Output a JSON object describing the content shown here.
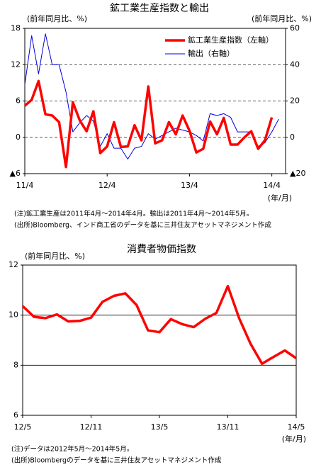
{
  "chart_data": [
    {
      "type": "line",
      "title": "鉱工業生産指数と輸出",
      "ylabel": "(前年同月比、%)",
      "y2label": "(前年同月比、%)",
      "xlabel": "(年/月)",
      "categories": [
        "11/4",
        null,
        null,
        null,
        null,
        null,
        null,
        null,
        null,
        null,
        null,
        null,
        "12/4",
        null,
        null,
        null,
        null,
        null,
        null,
        null,
        null,
        null,
        null,
        null,
        "13/4",
        null,
        null,
        null,
        null,
        null,
        null,
        null,
        null,
        null,
        null,
        null,
        "14/4",
        null
      ],
      "series": [
        {
          "name": "鉱工業生産指数（左軸）",
          "color": "#ff0000",
          "axis": "y",
          "values": [
            5.2,
            6.2,
            9.3,
            3.8,
            3.6,
            2.5,
            -4.9,
            5.8,
            2.8,
            1.0,
            4.3,
            -2.6,
            -1.5,
            2.5,
            -1.6,
            -1.5,
            2.0,
            -0.5,
            8.4,
            -1.0,
            -0.5,
            2.5,
            0.5,
            3.6,
            1.1,
            -2.5,
            -1.9,
            2.6,
            0.5,
            3.2,
            -1.2,
            -1.2,
            0.0,
            1.0,
            -1.9,
            -0.5,
            3.3,
            null
          ]
        },
        {
          "name": "輸出（右軸）",
          "color": "#0000dd",
          "axis": "y2",
          "values": [
            29,
            56,
            35,
            57,
            40,
            40,
            25,
            3,
            8,
            12,
            9,
            -5,
            2,
            -6,
            -6,
            -12,
            -6,
            -5,
            2,
            -1,
            1,
            3,
            5,
            4,
            3,
            1,
            -2,
            13,
            12,
            13,
            11,
            3,
            3,
            3,
            -5,
            -3,
            3,
            10
          ]
        }
      ],
      "ylim": [
        -6,
        18
      ],
      "yticks": [
        {
          "value": -6,
          "label": "▲6"
        },
        0,
        6,
        12,
        18
      ],
      "y2lim": [
        -20,
        60
      ],
      "y2ticks": [
        {
          "value": -20,
          "label": "▲20"
        },
        0,
        20,
        40,
        60
      ],
      "grid": true,
      "notes": [
        "(注)鉱工業生産は2011年4月～2014年4月。輸出は2011年4月～2014年5月。",
        "(出所)Bloomberg、インド商工省のデータを基に三井住友アセットマネジメント作成"
      ]
    },
    {
      "type": "line",
      "title": "消費者物価指数",
      "ylabel": "(前年同月比、%)",
      "xlabel": "(年/月)",
      "categories": [
        "12/5",
        null,
        null,
        null,
        null,
        null,
        "12/11",
        null,
        null,
        null,
        null,
        null,
        "13/5",
        null,
        null,
        null,
        null,
        null,
        "13/11",
        null,
        null,
        null,
        null,
        null,
        "14/5"
      ],
      "series": [
        {
          "name": "消費者物価指数",
          "color": "#ff0000",
          "axis": "y",
          "values": [
            10.36,
            9.93,
            9.88,
            10.03,
            9.75,
            9.77,
            9.9,
            10.53,
            10.77,
            10.87,
            10.4,
            9.39,
            9.32,
            9.84,
            9.64,
            9.52,
            9.85,
            10.09,
            11.16,
            9.87,
            8.85,
            8.06,
            8.33,
            8.59,
            8.28
          ]
        }
      ],
      "ylim": [
        6,
        12
      ],
      "yticks": [
        6,
        8,
        10,
        12
      ],
      "grid": true,
      "notes": [
        "(注)データは2012年5月～2014年5月。",
        "(出所)Bloombergのデータを基に三井住友アセットマネジメント作成"
      ]
    }
  ]
}
